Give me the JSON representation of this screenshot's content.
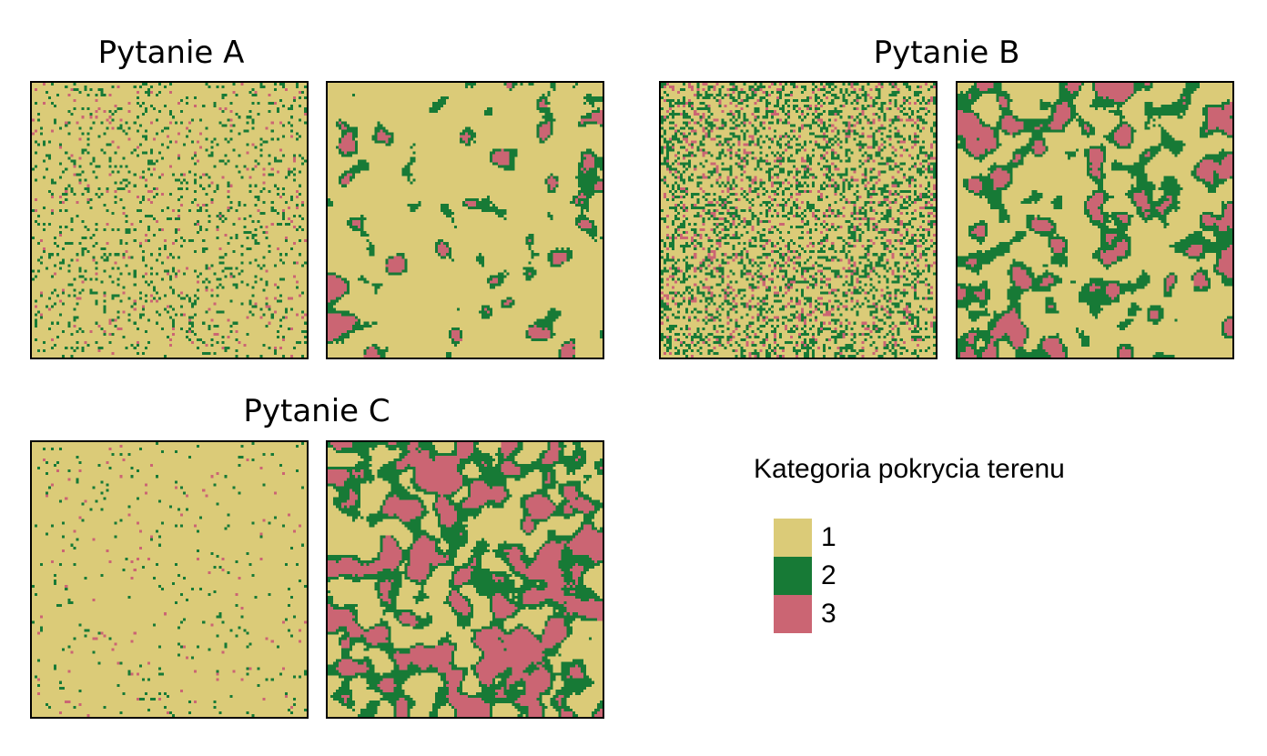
{
  "chart_data": {
    "type": "heatmap",
    "colors": {
      "1": "#dbcb78",
      "2": "#177a36",
      "3": "#cb6573"
    },
    "panels": [
      {
        "title": "Pytanie A",
        "maps": [
          {
            "pattern": "scattered",
            "p2": 0.1,
            "p3": 0.025
          },
          {
            "pattern": "clustered",
            "cover2": 0.1,
            "cover3": 0.05
          }
        ]
      },
      {
        "title": "Pytanie B",
        "maps": [
          {
            "pattern": "scattered",
            "p2": 0.26,
            "p3": 0.09
          },
          {
            "pattern": "clustered",
            "cover2": 0.26,
            "cover3": 0.14
          }
        ]
      },
      {
        "title": "Pytanie C",
        "maps": [
          {
            "pattern": "scattered",
            "p2": 0.03,
            "p3": 0.01
          },
          {
            "pattern": "clustered",
            "cover2": 0.32,
            "cover3": 0.3
          }
        ]
      }
    ],
    "legend": {
      "title": "Kategoria pokrycia terenu",
      "items": [
        {
          "label": "1",
          "color": "#dbcb78"
        },
        {
          "label": "2",
          "color": "#177a36"
        },
        {
          "label": "3",
          "color": "#cb6573"
        }
      ]
    }
  }
}
